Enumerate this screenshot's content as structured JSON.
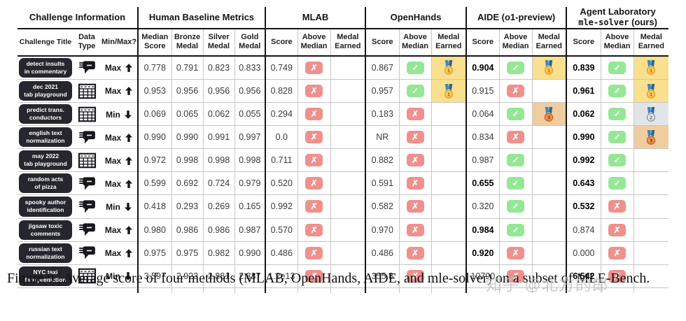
{
  "page": {
    "caption": "Figure 9 | Average score of four methods (MLAB, OpenHands, AIDE, and mle-solver) on a subset of MLE-Bench.",
    "watermark": "知乎 @北方的郎"
  },
  "colors": {
    "pill_bg": "#26262e",
    "check_green": "#95E795",
    "cross_red": "#F0908D",
    "gold_bg": "#F8E08E",
    "silver_bg": "#E3E4E8",
    "bronze_bg": "#F0CD9E",
    "ribbon_blue": "#3B88C3",
    "line_thick": "#151515",
    "line_thin": "#c6c6c6"
  },
  "icons": {
    "data_type_text": "speech-bubbles-icon",
    "data_type_table": "spreadsheet-icon",
    "above_median_true": "check-icon",
    "above_median_false": "cross-icon",
    "medal_gold": "gold-medal-icon",
    "medal_silver": "silver-medal-icon",
    "medal_bronze": "bronze-medal-icon",
    "objective_max": "up-arrow-icon",
    "objective_min": "down-arrow-icon"
  },
  "table": {
    "group_headers": [
      "Challenge Information",
      "Human Baseline Metrics",
      "MLAB",
      "OpenHands",
      "AIDE (o1-preview)"
    ],
    "agent_lab": {
      "line1": "Agent Laboratory",
      "code": "mle-solver",
      "suffix": " (ours)"
    },
    "column_headers": [
      "Challenge Title",
      "Data Type",
      "Min/Max?",
      "Median Score",
      "Bronze Medal",
      "Silver Medal",
      "Gold Medal",
      "Score",
      "Above Median",
      "Medal Earned",
      "Score",
      "Above Median",
      "Medal Earned",
      "Score",
      "Above Median",
      "Medal Earned",
      "Score",
      "Above Median",
      "Medal Earned"
    ],
    "method_keys": [
      "mlab",
      "openhands",
      "aide",
      "mle-solver"
    ],
    "rows": [
      {
        "title": [
          "detect insults",
          "in commentary"
        ],
        "type": "text",
        "objective": "Max",
        "baseline": [
          "0.778",
          "0.791",
          "0.823",
          "0.833"
        ],
        "methods": [
          {
            "score": "0.749",
            "above": false,
            "medal": null,
            "bold": false
          },
          {
            "score": "0.867",
            "above": true,
            "medal": "gold",
            "bold": false
          },
          {
            "score": "0.904",
            "above": true,
            "medal": "gold",
            "bold": true
          },
          {
            "score": "0.839",
            "above": true,
            "medal": "gold",
            "bold": true
          }
        ]
      },
      {
        "title": [
          "dec 2021",
          "tab playground"
        ],
        "type": "table",
        "objective": "Max",
        "baseline": [
          "0.953",
          "0.956",
          "0.956",
          "0.956"
        ],
        "methods": [
          {
            "score": "0.828",
            "above": false,
            "medal": null,
            "bold": false
          },
          {
            "score": "0.957",
            "above": true,
            "medal": "gold",
            "bold": false
          },
          {
            "score": "0.915",
            "above": false,
            "medal": null,
            "bold": false
          },
          {
            "score": "0.961",
            "above": true,
            "medal": "gold",
            "bold": true
          }
        ]
      },
      {
        "title": [
          "predict trans.",
          "conductors"
        ],
        "type": "table",
        "objective": "Min",
        "baseline": [
          "0.069",
          "0.065",
          "0.062",
          "0.055"
        ],
        "methods": [
          {
            "score": "0.294",
            "above": false,
            "medal": null,
            "bold": false
          },
          {
            "score": "0.183",
            "above": false,
            "medal": null,
            "bold": false
          },
          {
            "score": "0.064",
            "above": true,
            "medal": "bronze",
            "bold": false
          },
          {
            "score": "0.062",
            "above": true,
            "medal": "silver",
            "bold": true
          }
        ]
      },
      {
        "title": [
          "english text",
          "normalization"
        ],
        "type": "text",
        "objective": "Max",
        "baseline": [
          "0.990",
          "0.990",
          "0.991",
          "0.997"
        ],
        "methods": [
          {
            "score": "0.0",
            "above": false,
            "medal": null,
            "bold": false
          },
          {
            "score": "NR",
            "above": false,
            "medal": null,
            "bold": false
          },
          {
            "score": "0.834",
            "above": false,
            "medal": null,
            "bold": false
          },
          {
            "score": "0.990",
            "above": true,
            "medal": "bronze",
            "bold": true
          }
        ]
      },
      {
        "title": [
          "may 2022",
          "tab playground"
        ],
        "type": "table",
        "objective": "Max",
        "baseline": [
          "0.972",
          "0.998",
          "0.998",
          "0.998"
        ],
        "methods": [
          {
            "score": "0.711",
            "above": false,
            "medal": null,
            "bold": false
          },
          {
            "score": "0.882",
            "above": false,
            "medal": null,
            "bold": false
          },
          {
            "score": "0.987",
            "above": true,
            "medal": null,
            "bold": false
          },
          {
            "score": "0.992",
            "above": true,
            "medal": null,
            "bold": true
          }
        ]
      },
      {
        "title": [
          "random acts",
          "of pizza"
        ],
        "type": "text",
        "objective": "Max",
        "baseline": [
          "0.599",
          "0.692",
          "0.724",
          "0.979"
        ],
        "methods": [
          {
            "score": "0.520",
            "above": false,
            "medal": null,
            "bold": false
          },
          {
            "score": "0.591",
            "above": false,
            "medal": null,
            "bold": false
          },
          {
            "score": "0.655",
            "above": true,
            "medal": null,
            "bold": true
          },
          {
            "score": "0.643",
            "above": true,
            "medal": null,
            "bold": true
          }
        ]
      },
      {
        "title": [
          "spooky author",
          "identification"
        ],
        "type": "text",
        "objective": "Min",
        "baseline": [
          "0.418",
          "0.293",
          "0.269",
          "0.165"
        ],
        "methods": [
          {
            "score": "0.992",
            "above": false,
            "medal": null,
            "bold": false
          },
          {
            "score": "0.582",
            "above": false,
            "medal": null,
            "bold": false
          },
          {
            "score": "0.320",
            "above": true,
            "medal": null,
            "bold": false
          },
          {
            "score": "0.532",
            "above": false,
            "medal": null,
            "bold": true
          }
        ]
      },
      {
        "title": [
          "jigsaw toxic",
          "comments"
        ],
        "type": "text",
        "objective": "Max",
        "baseline": [
          "0.980",
          "0.986",
          "0.986",
          "0.987"
        ],
        "methods": [
          {
            "score": "0.570",
            "above": false,
            "medal": null,
            "bold": false
          },
          {
            "score": "0.970",
            "above": false,
            "medal": null,
            "bold": false
          },
          {
            "score": "0.984",
            "above": true,
            "medal": null,
            "bold": true
          },
          {
            "score": "0.874",
            "above": false,
            "medal": null,
            "bold": false
          }
        ]
      },
      {
        "title": [
          "russian text",
          "normalization"
        ],
        "type": "text",
        "objective": "Max",
        "baseline": [
          "0.975",
          "0.975",
          "0.982",
          "0.990"
        ],
        "methods": [
          {
            "score": "0.486",
            "above": false,
            "medal": null,
            "bold": false
          },
          {
            "score": "0.486",
            "above": false,
            "medal": null,
            "bold": false
          },
          {
            "score": "0.920",
            "above": false,
            "medal": null,
            "bold": true
          },
          {
            "score": "0.000",
            "above": false,
            "medal": null,
            "bold": false
          }
        ]
      },
      {
        "title": [
          "NYC taxi",
          "fare prediction"
        ],
        "type": "table",
        "objective": "Min",
        "baseline": [
          "3.597",
          "2.923",
          "2.881",
          "2.337"
        ],
        "methods": [
          {
            "score": "1.2e13",
            "above": false,
            "medal": null,
            "bold": false
          },
          {
            "score": "355.8",
            "above": false,
            "medal": null,
            "bold": false
          },
          {
            "score": "10790",
            "above": false,
            "medal": null,
            "bold": false
          },
          {
            "score": "6.542",
            "above": false,
            "medal": null,
            "bold": true
          }
        ]
      }
    ]
  }
}
